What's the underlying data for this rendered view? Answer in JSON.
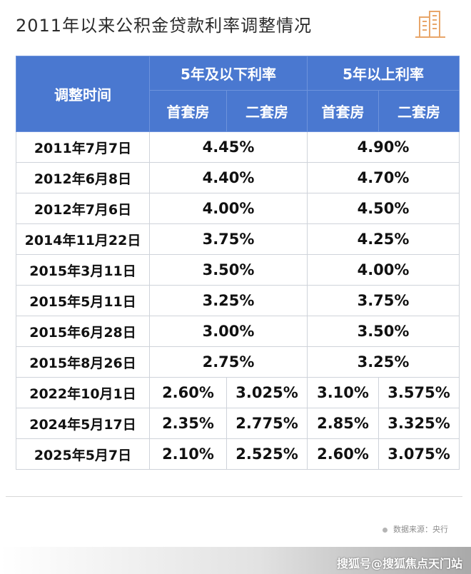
{
  "title": "2011年以来公积金贷款利率调整情况",
  "colors": {
    "header_bg": "#4a78d0",
    "header_text": "#ffffff",
    "logo": "#e8a66a"
  },
  "logo_icon": "building-icon",
  "table": {
    "date_header": "调整时间",
    "group_headers": [
      "5年及以下利率",
      "5年以上利率"
    ],
    "sub_headers": [
      "首套房",
      "二套房",
      "首套房",
      "二套房"
    ],
    "merged_rows": [
      {
        "date": "2011年7月7日",
        "le5": "4.45%",
        "gt5": "4.90%"
      },
      {
        "date": "2012年6月8日",
        "le5": "4.40%",
        "gt5": "4.70%"
      },
      {
        "date": "2012年7月6日",
        "le5": "4.00%",
        "gt5": "4.50%"
      },
      {
        "date": "2014年11月22日",
        "le5": "3.75%",
        "gt5": "4.25%"
      },
      {
        "date": "2015年3月11日",
        "le5": "3.50%",
        "gt5": "4.00%"
      },
      {
        "date": "2015年5月11日",
        "le5": "3.25%",
        "gt5": "3.75%"
      },
      {
        "date": "2015年6月28日",
        "le5": "3.00%",
        "gt5": "3.50%"
      },
      {
        "date": "2015年8月26日",
        "le5": "2.75%",
        "gt5": "3.25%"
      }
    ],
    "split_rows": [
      {
        "date": "2022年10月1日",
        "le5_first": "2.60%",
        "le5_second": "3.025%",
        "gt5_first": "3.10%",
        "gt5_second": "3.575%"
      },
      {
        "date": "2024年5月17日",
        "le5_first": "2.35%",
        "le5_second": "2.775%",
        "gt5_first": "2.85%",
        "gt5_second": "3.325%"
      },
      {
        "date": "2025年5月7日",
        "le5_first": "2.10%",
        "le5_second": "2.525%",
        "gt5_first": "2.60%",
        "gt5_second": "3.075%"
      }
    ]
  },
  "source": "数据来源：央行",
  "watermark": "搜狐号@搜狐焦点天门站"
}
